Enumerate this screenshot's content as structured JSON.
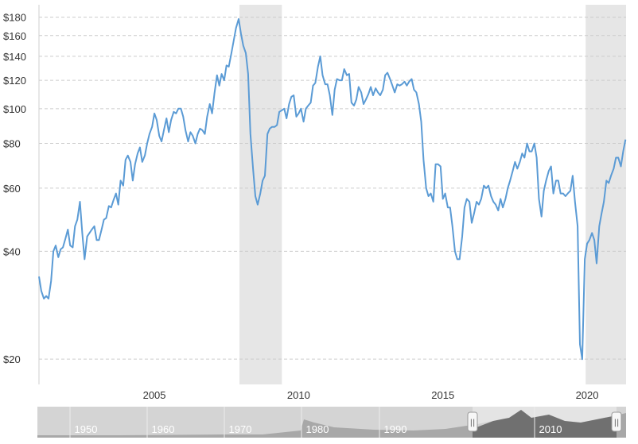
{
  "chart_data": {
    "type": "line",
    "title": "",
    "xlabel": "",
    "ylabel": "",
    "y_scale": "log",
    "ylim": [
      17,
      195
    ],
    "xlim": [
      2001.0,
      2021.35
    ],
    "y_ticks": [
      {
        "value": 20,
        "label": "$20"
      },
      {
        "value": 40,
        "label": "$40"
      },
      {
        "value": 60,
        "label": "$60"
      },
      {
        "value": 80,
        "label": "$80"
      },
      {
        "value": 100,
        "label": "$100"
      },
      {
        "value": 120,
        "label": "$120"
      },
      {
        "value": 140,
        "label": "$140"
      },
      {
        "value": 160,
        "label": "$160"
      },
      {
        "value": 180,
        "label": "$180"
      }
    ],
    "x_ticks": [
      {
        "value": 2005,
        "label": "2005"
      },
      {
        "value": 2010,
        "label": "2010"
      },
      {
        "value": 2015,
        "label": "2015"
      },
      {
        "value": 2020,
        "label": "2020"
      }
    ],
    "grid": true,
    "legend": "none",
    "recessions": [
      [
        2007.95,
        2009.42
      ],
      [
        2019.95,
        2021.35
      ]
    ],
    "colors": {
      "line": "#5b9bd5",
      "recession": "#e6e6e6",
      "grid": "#cccccc",
      "navigator_bg": "#d4d4d4",
      "navigator_selected": "#f0f0f0"
    },
    "series": [
      {
        "x": [
          2001.0,
          2001.08,
          2001.17,
          2001.25,
          2001.33,
          2001.42,
          2001.5,
          2001.58,
          2001.67,
          2001.75,
          2001.83,
          2001.92,
          2002.0,
          2002.08,
          2002.17,
          2002.25,
          2002.33,
          2002.42,
          2002.5,
          2002.58,
          2002.67,
          2002.75,
          2002.83,
          2002.92,
          2003.0,
          2003.08,
          2003.17,
          2003.25,
          2003.33,
          2003.42,
          2003.5,
          2003.58,
          2003.67,
          2003.75,
          2003.83,
          2003.92,
          2004.0,
          2004.08,
          2004.17,
          2004.25,
          2004.33,
          2004.42,
          2004.5,
          2004.58,
          2004.67,
          2004.75,
          2004.83,
          2004.92,
          2005.0,
          2005.08,
          2005.17,
          2005.25,
          2005.33,
          2005.42,
          2005.5,
          2005.58,
          2005.67,
          2005.75,
          2005.83,
          2005.92,
          2006.0,
          2006.08,
          2006.17,
          2006.25,
          2006.33,
          2006.42,
          2006.5,
          2006.58,
          2006.67,
          2006.75,
          2006.83,
          2006.92,
          2007.0,
          2007.08,
          2007.17,
          2007.25,
          2007.33,
          2007.42,
          2007.5,
          2007.58,
          2007.67,
          2007.75,
          2007.83,
          2007.92,
          2008.0,
          2008.08,
          2008.17,
          2008.25,
          2008.33,
          2008.42,
          2008.5,
          2008.58,
          2008.67,
          2008.75,
          2008.83,
          2008.92,
          2009.0,
          2009.08,
          2009.17,
          2009.25,
          2009.33,
          2009.42,
          2009.5,
          2009.58,
          2009.67,
          2009.75,
          2009.83,
          2009.92,
          2010.0,
          2010.08,
          2010.17,
          2010.25,
          2010.33,
          2010.42,
          2010.5,
          2010.58,
          2010.67,
          2010.75,
          2010.83,
          2010.92,
          2011.0,
          2011.08,
          2011.17,
          2011.25,
          2011.33,
          2011.42,
          2011.5,
          2011.58,
          2011.67,
          2011.75,
          2011.83,
          2011.92,
          2012.0,
          2012.08,
          2012.17,
          2012.25,
          2012.33,
          2012.42,
          2012.5,
          2012.58,
          2012.67,
          2012.75,
          2012.83,
          2012.92,
          2013.0,
          2013.08,
          2013.17,
          2013.25,
          2013.33,
          2013.42,
          2013.5,
          2013.58,
          2013.67,
          2013.75,
          2013.83,
          2013.92,
          2014.0,
          2014.08,
          2014.17,
          2014.25,
          2014.33,
          2014.42,
          2014.5,
          2014.58,
          2014.67,
          2014.75,
          2014.83,
          2014.92,
          2015.0,
          2015.08,
          2015.17,
          2015.25,
          2015.33,
          2015.42,
          2015.5,
          2015.58,
          2015.67,
          2015.75,
          2015.83,
          2015.92,
          2016.0,
          2016.08,
          2016.17,
          2016.25,
          2016.33,
          2016.42,
          2016.5,
          2016.58,
          2016.67,
          2016.75,
          2016.83,
          2016.92,
          2017.0,
          2017.08,
          2017.17,
          2017.25,
          2017.33,
          2017.42,
          2017.5,
          2017.58,
          2017.67,
          2017.75,
          2017.83,
          2017.92,
          2018.0,
          2018.08,
          2018.17,
          2018.25,
          2018.33,
          2018.42,
          2018.5,
          2018.58,
          2018.67,
          2018.75,
          2018.83,
          2018.92,
          2019.0,
          2019.08,
          2019.17,
          2019.25,
          2019.33,
          2019.42,
          2019.5,
          2019.58,
          2019.67,
          2019.75,
          2019.83,
          2019.92,
          2020.0,
          2020.08,
          2020.17,
          2020.25,
          2020.33,
          2020.42,
          2020.5,
          2020.58,
          2020.67,
          2020.75,
          2020.83,
          2020.92,
          2021.0,
          2021.08,
          2021.17,
          2021.25,
          2021.33
        ],
        "values": [
          34,
          31,
          29.5,
          30,
          29.5,
          33,
          40,
          41.5,
          38.5,
          40.5,
          41,
          43.5,
          46,
          41.5,
          41,
          47,
          49,
          55,
          45,
          38,
          44,
          45,
          46,
          47,
          43,
          43,
          46,
          49,
          49.5,
          53.5,
          53,
          55.5,
          58,
          54,
          63,
          61,
          72,
          74,
          71,
          63,
          70,
          75,
          78,
          71,
          74,
          80,
          85,
          89,
          97,
          93,
          84,
          81,
          87,
          94,
          86,
          93,
          98,
          97,
          100,
          100,
          95,
          87,
          81,
          86,
          84,
          80,
          85,
          88,
          87,
          85,
          95,
          103,
          97,
          110,
          124,
          116,
          125,
          120,
          132,
          131,
          143,
          155,
          168,
          178,
          162,
          150,
          143,
          125,
          85,
          68,
          57,
          54,
          58,
          63,
          65,
          85,
          88,
          89,
          89,
          90,
          98,
          99,
          100,
          94,
          103,
          108,
          109,
          95,
          97,
          100,
          92,
          100,
          102,
          104,
          116,
          118,
          131,
          140,
          124,
          117,
          117,
          109,
          96,
          113,
          121,
          120,
          120,
          129,
          124,
          125,
          104,
          102,
          106,
          115,
          111,
          103,
          106,
          110,
          115,
          109,
          114,
          111,
          109,
          113,
          124,
          126,
          121,
          116,
          111,
          117,
          116,
          117,
          119,
          116,
          119,
          121,
          113,
          111,
          103,
          92,
          72,
          60,
          57,
          58,
          55,
          70,
          70,
          69,
          56,
          58,
          53,
          53,
          47,
          40,
          38,
          38,
          44,
          53,
          56,
          55,
          48,
          51,
          55,
          54,
          56,
          61,
          60,
          61,
          57,
          55,
          54,
          52,
          56,
          53,
          56,
          60,
          63,
          67,
          71,
          68,
          71,
          75,
          73,
          80,
          76,
          76,
          80,
          73,
          56,
          50,
          59,
          63,
          67,
          69,
          58,
          63,
          63,
          58,
          58,
          57,
          58,
          59,
          65,
          55,
          47,
          22,
          20,
          38,
          42,
          43,
          45,
          43,
          37,
          47,
          51,
          55,
          63,
          62,
          65,
          68,
          73,
          73,
          69,
          76,
          82
        ]
      }
    ],
    "navigator": {
      "labels": [
        "1950",
        "1960",
        "1970",
        "1980",
        "1990",
        "2010"
      ],
      "handles": [
        "||",
        "||"
      ]
    }
  }
}
